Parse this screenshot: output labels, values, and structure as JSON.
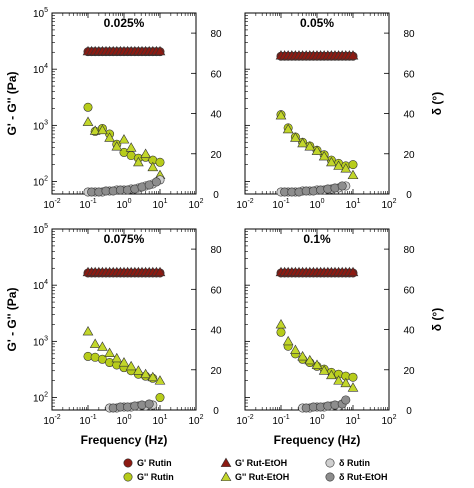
{
  "colors": {
    "gp_rutin": "#8c1a12",
    "gpp_rutin": "#b7cc1a",
    "delta_rutin": "#cfcfcf",
    "gp_etoh": "#8c1a12",
    "gpp_etoh": "#c2d62a",
    "delta_etoh": "#8d8d8d"
  },
  "chart_data": [
    {
      "type": "scatter",
      "title": "0.025%",
      "xlabel": "",
      "ylabel_left": "G' - G'' (Pa)",
      "ylabel_right": "",
      "xlim": [
        0.01,
        100
      ],
      "x_scale": "log",
      "ylim_left": [
        60,
        100000
      ],
      "y_left_scale": "log",
      "ylim_right": [
        0,
        90
      ],
      "x_tick_labels": [
        "10-2",
        "10-1",
        "100",
        "101",
        "102"
      ],
      "y_left_tick_labels": [
        "102",
        "103",
        "104",
        "105"
      ],
      "y_right_tick_labels": [
        "0",
        "20",
        "40",
        "60",
        "80"
      ],
      "series": [
        {
          "key": "gp_rutin",
          "marker": "circle",
          "axis": "left",
          "x": [
            0.1,
            0.126,
            0.158,
            0.2,
            0.251,
            0.316,
            0.398,
            0.501,
            0.631,
            0.794,
            1,
            1.26,
            1.58,
            2,
            2.51,
            3.16,
            3.98,
            5.01,
            6.31,
            7.94,
            10
          ],
          "y": [
            20500,
            20500,
            20500,
            20500,
            20500,
            20500,
            20500,
            20500,
            20500,
            20500,
            20500,
            20500,
            20500,
            20500,
            20500,
            20500,
            20500,
            20500,
            20500,
            20500,
            20500
          ]
        },
        {
          "key": "gp_etoh",
          "marker": "triangle",
          "axis": "left",
          "x": [
            0.1,
            0.126,
            0.158,
            0.2,
            0.251,
            0.316,
            0.398,
            0.501,
            0.631,
            0.794,
            1,
            1.26,
            1.58,
            2,
            2.51,
            3.16,
            3.98,
            5.01,
            6.31,
            7.94,
            10
          ],
          "y": [
            20800,
            20800,
            20800,
            20800,
            20800,
            20800,
            20800,
            20800,
            20800,
            20800,
            20800,
            20800,
            20800,
            20800,
            20800,
            20800,
            20800,
            20800,
            20800,
            20800,
            20800
          ]
        },
        {
          "key": "gpp_rutin",
          "marker": "circle",
          "axis": "left",
          "x": [
            0.1,
            0.158,
            0.251,
            0.398,
            0.631,
            1,
            1.58,
            2.51,
            3.98,
            6.31,
            10
          ],
          "y": [
            2100,
            780,
            880,
            700,
            460,
            330,
            290,
            260,
            270,
            240,
            220
          ]
        },
        {
          "key": "gpp_etoh",
          "marker": "triangle",
          "axis": "left",
          "x": [
            0.1,
            0.158,
            0.251,
            0.398,
            0.631,
            1,
            1.58,
            2.51,
            3.98,
            6.31,
            10
          ],
          "y": [
            1150,
            800,
            820,
            600,
            420,
            560,
            400,
            220,
            310,
            180,
            130
          ]
        },
        {
          "key": "delta_rutin",
          "marker": "circle",
          "axis": "right",
          "x": [
            0.1,
            0.158,
            0.251,
            0.398,
            0.631,
            1,
            1.58,
            2.51,
            3.98,
            6.31,
            10
          ],
          "y": [
            1,
            1,
            1,
            1.5,
            2,
            2,
            2.5,
            3,
            4,
            5,
            7
          ]
        },
        {
          "key": "delta_etoh",
          "marker": "circle",
          "axis": "right",
          "x": [
            0.126,
            0.2,
            0.316,
            0.501,
            0.794,
            1.26,
            2,
            3.16,
            5.01,
            7.94
          ],
          "y": [
            1,
            1,
            1.5,
            1.5,
            2,
            2,
            2.5,
            3.5,
            4.5,
            6
          ]
        }
      ]
    },
    {
      "type": "scatter",
      "title": "0.05%",
      "xlabel": "",
      "ylabel_left": "",
      "ylabel_right": "δ (°)",
      "xlim": [
        0.01,
        100
      ],
      "x_scale": "log",
      "ylim_left": [
        60,
        100000
      ],
      "y_left_scale": "log",
      "ylim_right": [
        0,
        90
      ],
      "x_tick_labels": [
        "10-2",
        "10-1",
        "100",
        "101",
        "102"
      ],
      "y_left_tick_labels": [],
      "y_right_tick_labels": [
        "0",
        "20",
        "40",
        "60",
        "80"
      ],
      "series": [
        {
          "key": "gp_rutin",
          "marker": "circle",
          "axis": "left",
          "x": [
            0.1,
            0.126,
            0.158,
            0.2,
            0.251,
            0.316,
            0.398,
            0.501,
            0.631,
            0.794,
            1,
            1.26,
            1.58,
            2,
            2.51,
            3.16,
            3.98,
            5.01,
            6.31,
            7.94,
            10
          ],
          "y": [
            17000,
            17000,
            17000,
            17000,
            17000,
            17000,
            17000,
            17000,
            17000,
            17000,
            17000,
            17000,
            17000,
            17000,
            17000,
            17000,
            17000,
            17000,
            17000,
            17000,
            17000
          ]
        },
        {
          "key": "gp_etoh",
          "marker": "triangle",
          "axis": "left",
          "x": [
            0.1,
            0.126,
            0.158,
            0.2,
            0.251,
            0.316,
            0.398,
            0.501,
            0.631,
            0.794,
            1,
            1.26,
            1.58,
            2,
            2.51,
            3.16,
            3.98,
            5.01,
            6.31,
            7.94,
            10
          ],
          "y": [
            17500,
            17500,
            17500,
            17500,
            17500,
            17500,
            17500,
            17500,
            17500,
            17500,
            17500,
            17500,
            17500,
            17500,
            17500,
            17500,
            17500,
            17500,
            17500,
            17500,
            17500
          ]
        },
        {
          "key": "gpp_rutin",
          "marker": "circle",
          "axis": "left",
          "x": [
            0.1,
            0.158,
            0.251,
            0.398,
            0.631,
            1,
            1.58,
            2.51,
            3.98,
            6.31,
            10
          ],
          "y": [
            1550,
            900,
            620,
            500,
            430,
            360,
            300,
            240,
            210,
            190,
            200
          ]
        },
        {
          "key": "gpp_etoh",
          "marker": "triangle",
          "axis": "left",
          "x": [
            0.1,
            0.158,
            0.251,
            0.398,
            0.631,
            1,
            1.58,
            2.51,
            3.98,
            6.31,
            10
          ],
          "y": [
            1500,
            850,
            600,
            480,
            420,
            350,
            280,
            220,
            190,
            170,
            130
          ]
        },
        {
          "key": "delta_rutin",
          "marker": "circle",
          "axis": "right",
          "x": [
            0.1,
            0.158,
            0.251,
            0.398,
            0.631,
            1,
            1.58,
            2.51,
            3.98,
            6.31
          ],
          "y": [
            1,
            1,
            1,
            1.5,
            1.5,
            2,
            2,
            2.5,
            3,
            4
          ]
        },
        {
          "key": "delta_etoh",
          "marker": "circle",
          "axis": "right",
          "x": [
            0.126,
            0.2,
            0.316,
            0.501,
            0.794,
            1.26,
            2,
            3.16,
            5.01
          ],
          "y": [
            1,
            1,
            1,
            1.5,
            1.5,
            2,
            2.5,
            3,
            4
          ]
        }
      ]
    },
    {
      "type": "scatter",
      "title": "0.075%",
      "xlabel": "Frequency (Hz)",
      "ylabel_left": "G' - G'' (Pa)",
      "ylabel_right": "",
      "xlim": [
        0.01,
        100
      ],
      "x_scale": "log",
      "ylim_left": [
        60,
        100000
      ],
      "y_left_scale": "log",
      "ylim_right": [
        0,
        90
      ],
      "x_tick_labels": [
        "10-2",
        "10-1",
        "100",
        "101",
        "102"
      ],
      "y_left_tick_labels": [
        "102",
        "103",
        "104",
        "105"
      ],
      "y_right_tick_labels": [
        "0",
        "20",
        "40",
        "60",
        "80"
      ],
      "series": [
        {
          "key": "gp_rutin",
          "marker": "circle",
          "axis": "left",
          "x": [
            0.1,
            0.126,
            0.158,
            0.2,
            0.251,
            0.316,
            0.398,
            0.501,
            0.631,
            0.794,
            1,
            1.26,
            1.58,
            2,
            2.51,
            3.16,
            3.98,
            5.01,
            6.31,
            7.94,
            10
          ],
          "y": [
            16500,
            16500,
            16500,
            16500,
            16500,
            16500,
            16500,
            16500,
            16500,
            16500,
            16500,
            16500,
            16500,
            16500,
            16500,
            16500,
            16500,
            16500,
            16500,
            16500,
            16500
          ]
        },
        {
          "key": "gp_etoh",
          "marker": "triangle",
          "axis": "left",
          "x": [
            0.1,
            0.126,
            0.158,
            0.2,
            0.251,
            0.316,
            0.398,
            0.501,
            0.631,
            0.794,
            1,
            1.26,
            1.58,
            2,
            2.51,
            3.16,
            3.98,
            5.01,
            6.31,
            7.94,
            10
          ],
          "y": [
            17000,
            17000,
            17000,
            17000,
            17000,
            17000,
            17000,
            17000,
            17000,
            17000,
            17000,
            17000,
            17000,
            17000,
            17000,
            17000,
            17000,
            17000,
            17000,
            17000,
            17000
          ]
        },
        {
          "key": "gpp_rutin",
          "marker": "circle",
          "axis": "left",
          "x": [
            0.1,
            0.158,
            0.251,
            0.398,
            0.631,
            1,
            1.58,
            2.51,
            3.98,
            6.31,
            10
          ],
          "y": [
            540,
            520,
            480,
            420,
            380,
            340,
            300,
            260,
            240,
            220,
            100
          ]
        },
        {
          "key": "gpp_etoh",
          "marker": "triangle",
          "axis": "left",
          "x": [
            0.1,
            0.158,
            0.251,
            0.398,
            0.631,
            1,
            1.58,
            2.51,
            3.98,
            6.31,
            10
          ],
          "y": [
            1500,
            900,
            800,
            620,
            500,
            420,
            360,
            300,
            260,
            230,
            200
          ]
        },
        {
          "key": "delta_rutin",
          "marker": "circle",
          "axis": "right",
          "x": [
            0.398,
            0.631,
            1,
            1.58,
            2.51,
            3.98,
            6.31
          ],
          "y": [
            1,
            1,
            1.5,
            1.5,
            2,
            2,
            2.5
          ]
        },
        {
          "key": "delta_etoh",
          "marker": "circle",
          "axis": "right",
          "x": [
            0.501,
            0.794,
            1.26,
            2,
            3.16,
            5.01
          ],
          "y": [
            1,
            1.5,
            1.5,
            2,
            2.5,
            3
          ]
        }
      ]
    },
    {
      "type": "scatter",
      "title": "0.1%",
      "xlabel": "Frequency (Hz)",
      "ylabel_left": "",
      "ylabel_right": "δ (°)",
      "xlim": [
        0.01,
        100
      ],
      "x_scale": "log",
      "ylim_left": [
        60,
        100000
      ],
      "y_left_scale": "log",
      "ylim_right": [
        0,
        90
      ],
      "x_tick_labels": [
        "10-2",
        "10-1",
        "100",
        "101",
        "102"
      ],
      "y_left_tick_labels": [],
      "y_right_tick_labels": [
        "0",
        "20",
        "40",
        "60",
        "80"
      ],
      "series": [
        {
          "key": "gp_rutin",
          "marker": "circle",
          "axis": "left",
          "x": [
            0.1,
            0.126,
            0.158,
            0.2,
            0.251,
            0.316,
            0.398,
            0.501,
            0.631,
            0.794,
            1,
            1.26,
            1.58,
            2,
            2.51,
            3.16,
            3.98,
            5.01,
            6.31,
            7.94,
            10
          ],
          "y": [
            16500,
            16500,
            16500,
            16500,
            16500,
            16500,
            16500,
            16500,
            16500,
            16500,
            16500,
            16500,
            16500,
            16500,
            16500,
            16500,
            16500,
            16500,
            16500,
            16500,
            16500
          ]
        },
        {
          "key": "gp_etoh",
          "marker": "triangle",
          "axis": "left",
          "x": [
            0.1,
            0.126,
            0.158,
            0.2,
            0.251,
            0.316,
            0.398,
            0.501,
            0.631,
            0.794,
            1,
            1.26,
            1.58,
            2,
            2.51,
            3.16,
            3.98,
            5.01,
            6.31,
            7.94,
            10
          ],
          "y": [
            17000,
            17000,
            17000,
            17000,
            17000,
            17000,
            17000,
            17000,
            17000,
            17000,
            17000,
            17000,
            17000,
            17000,
            17000,
            17000,
            17000,
            17000,
            17000,
            17000,
            17000
          ]
        },
        {
          "key": "gpp_rutin",
          "marker": "circle",
          "axis": "left",
          "x": [
            0.1,
            0.158,
            0.251,
            0.398,
            0.631,
            1,
            1.58,
            2.51,
            3.98,
            6.31,
            10
          ],
          "y": [
            1450,
            820,
            600,
            480,
            420,
            360,
            320,
            280,
            260,
            240,
            230
          ]
        },
        {
          "key": "gpp_etoh",
          "marker": "triangle",
          "axis": "left",
          "x": [
            0.1,
            0.158,
            0.251,
            0.398,
            0.631,
            1,
            1.58,
            2.51,
            3.98,
            6.31,
            10
          ],
          "y": [
            2000,
            1000,
            700,
            540,
            460,
            380,
            300,
            250,
            200,
            180,
            150
          ]
        },
        {
          "key": "delta_rutin",
          "marker": "circle",
          "axis": "right",
          "x": [
            0.398,
            0.631,
            1,
            1.58,
            2.51,
            3.98
          ],
          "y": [
            1,
            1,
            1.5,
            1.5,
            2,
            2
          ]
        },
        {
          "key": "delta_etoh",
          "marker": "circle",
          "axis": "right",
          "x": [
            0.501,
            0.794,
            1.26,
            2,
            3.16,
            5.01,
            6.31
          ],
          "y": [
            1,
            1.5,
            1.5,
            2,
            2.5,
            3,
            5
          ]
        }
      ]
    }
  ],
  "legend": [
    {
      "key": "gp_rutin",
      "marker": "circle",
      "label": "G' Rutin"
    },
    {
      "key": "gp_etoh",
      "marker": "triangle",
      "label": "G' Rut-EtOH"
    },
    {
      "key": "delta_rutin",
      "marker": "circle",
      "label": "δ Rutin"
    },
    {
      "key": "gpp_rutin",
      "marker": "circle",
      "label": "G'' Rutin"
    },
    {
      "key": "gpp_etoh",
      "marker": "triangle",
      "label": "G'' Rut-EtOH"
    },
    {
      "key": "delta_etoh",
      "marker": "circle",
      "label": "δ Rut-EtOH"
    }
  ]
}
